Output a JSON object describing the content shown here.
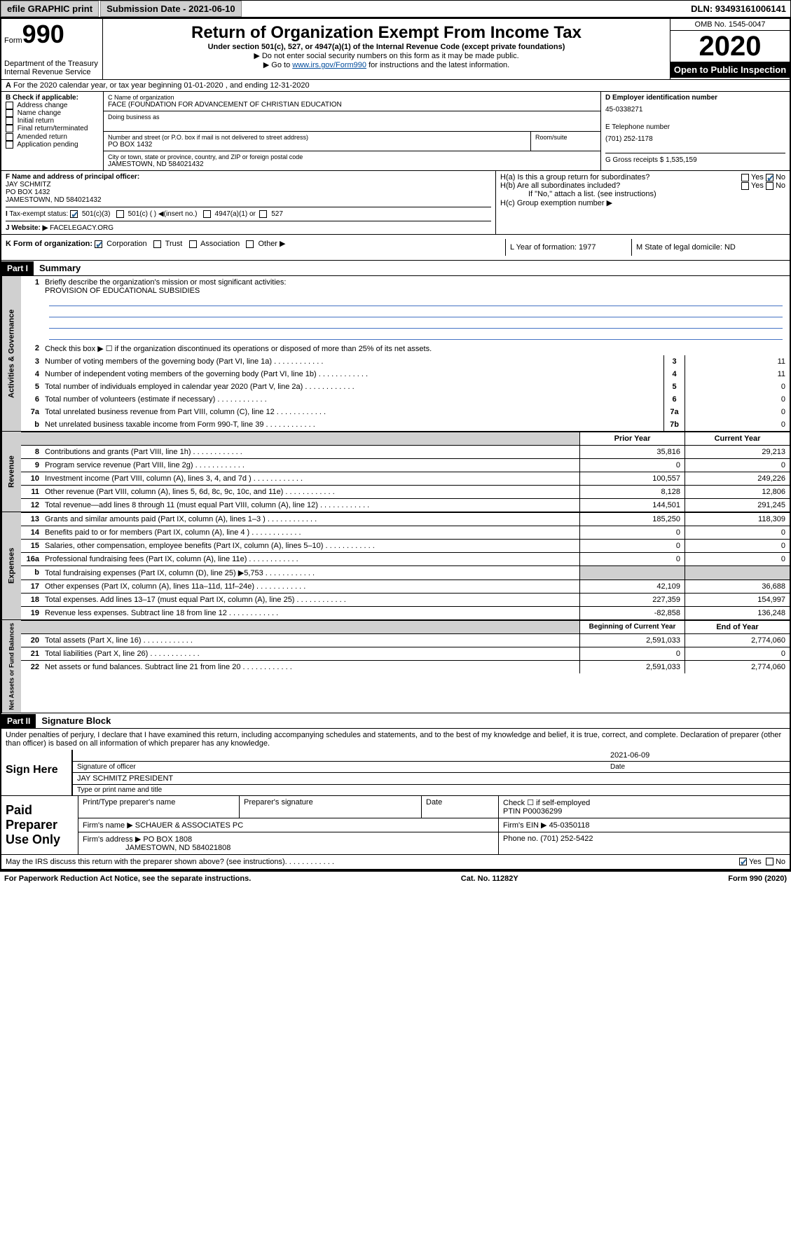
{
  "topbar": {
    "efile": "efile GRAPHIC print",
    "submission_label": "Submission Date - 2021-06-10",
    "dln": "DLN: 93493161006141"
  },
  "header": {
    "form_prefix": "Form",
    "form_number": "990",
    "dept": "Department of the Treasury\nInternal Revenue Service",
    "title": "Return of Organization Exempt From Income Tax",
    "subtitle": "Under section 501(c), 527, or 4947(a)(1) of the Internal Revenue Code (except private foundations)",
    "instr1": "Do not enter social security numbers on this form as it may be made public.",
    "instr2_pre": "Go to ",
    "instr2_link": "www.irs.gov/Form990",
    "instr2_post": " for instructions and the latest information.",
    "omb": "OMB No. 1545-0047",
    "year": "2020",
    "open_public": "Open to Public Inspection"
  },
  "lineA": "For the 2020 calendar year, or tax year beginning 01-01-2020   , and ending 12-31-2020",
  "colB": {
    "label": "B Check if applicable:",
    "items": [
      "Address change",
      "Name change",
      "Initial return",
      "Final return/terminated",
      "Amended return",
      "Application pending"
    ]
  },
  "colC": {
    "name_label": "C Name of organization",
    "name": "FACE (FOUNDATION FOR ADVANCEMENT OF CHRISTIAN EDUCATION",
    "dba_label": "Doing business as",
    "addr_label": "Number and street (or P.O. box if mail is not delivered to street address)",
    "room_label": "Room/suite",
    "addr": "PO BOX 1432",
    "city_label": "City or town, state or province, country, and ZIP or foreign postal code",
    "city": "JAMESTOWN, ND  584021432"
  },
  "colD": {
    "ein_label": "D Employer identification number",
    "ein": "45-0338271",
    "phone_label": "E Telephone number",
    "phone": "(701) 252-1178",
    "gross_label": "G Gross receipts $ 1,535,159"
  },
  "colF": {
    "label": "F  Name and address of principal officer:",
    "name": "JAY SCHMITZ",
    "addr1": "PO BOX 1432",
    "addr2": "JAMESTOWN, ND  584021432"
  },
  "colH": {
    "ha": "H(a)  Is this a group return for subordinates?",
    "hb": "H(b)  Are all subordinates included?",
    "hb_note": "If \"No,\" attach a list. (see instructions)",
    "hc": "H(c)  Group exemption number ▶",
    "yes": "Yes",
    "no": "No"
  },
  "rowI": {
    "label": "Tax-exempt status:",
    "opt1": "501(c)(3)",
    "opt2": "501(c) (  ) ◀(insert no.)",
    "opt3": "4947(a)(1) or",
    "opt4": "527"
  },
  "rowJ": {
    "label": "Website: ▶",
    "val": "FACELEGACY.ORG"
  },
  "rowK": {
    "label": "K Form of organization:",
    "opts": [
      "Corporation",
      "Trust",
      "Association",
      "Other ▶"
    ]
  },
  "colL": {
    "label": "L Year of formation: 1977"
  },
  "colM": {
    "label": "M State of legal domicile: ND"
  },
  "part1": {
    "header": "Part I",
    "title": "Summary",
    "q1": "Briefly describe the organization's mission or most significant activities:",
    "q1_val": "PROVISION OF EDUCATIONAL SUBSIDIES",
    "q2": "Check this box ▶ ☐ if the organization discontinued its operations or disposed of more than 25% of its net assets.",
    "vert1": "Activities & Governance",
    "vert2": "Revenue",
    "vert3": "Expenses",
    "vert4": "Net Assets or Fund Balances",
    "lines_gov": [
      {
        "n": "3",
        "t": "Number of voting members of the governing body (Part VI, line 1a)",
        "b": "3",
        "v": "11"
      },
      {
        "n": "4",
        "t": "Number of independent voting members of the governing body (Part VI, line 1b)",
        "b": "4",
        "v": "11"
      },
      {
        "n": "5",
        "t": "Total number of individuals employed in calendar year 2020 (Part V, line 2a)",
        "b": "5",
        "v": "0"
      },
      {
        "n": "6",
        "t": "Total number of volunteers (estimate if necessary)",
        "b": "6",
        "v": "0"
      },
      {
        "n": "7a",
        "t": "Total unrelated business revenue from Part VIII, column (C), line 12",
        "b": "7a",
        "v": "0"
      },
      {
        "n": "b",
        "t": "Net unrelated business taxable income from Form 990-T, line 39",
        "b": "7b",
        "v": "0"
      }
    ],
    "th_prior": "Prior Year",
    "th_current": "Current Year",
    "lines_rev": [
      {
        "n": "8",
        "t": "Contributions and grants (Part VIII, line 1h)",
        "p": "35,816",
        "c": "29,213"
      },
      {
        "n": "9",
        "t": "Program service revenue (Part VIII, line 2g)",
        "p": "0",
        "c": "0"
      },
      {
        "n": "10",
        "t": "Investment income (Part VIII, column (A), lines 3, 4, and 7d )",
        "p": "100,557",
        "c": "249,226"
      },
      {
        "n": "11",
        "t": "Other revenue (Part VIII, column (A), lines 5, 6d, 8c, 9c, 10c, and 11e)",
        "p": "8,128",
        "c": "12,806"
      },
      {
        "n": "12",
        "t": "Total revenue—add lines 8 through 11 (must equal Part VIII, column (A), line 12)",
        "p": "144,501",
        "c": "291,245"
      }
    ],
    "lines_exp": [
      {
        "n": "13",
        "t": "Grants and similar amounts paid (Part IX, column (A), lines 1–3 )",
        "p": "185,250",
        "c": "118,309"
      },
      {
        "n": "14",
        "t": "Benefits paid to or for members (Part IX, column (A), line 4 )",
        "p": "0",
        "c": "0"
      },
      {
        "n": "15",
        "t": "Salaries, other compensation, employee benefits (Part IX, column (A), lines 5–10)",
        "p": "0",
        "c": "0"
      },
      {
        "n": "16a",
        "t": "Professional fundraising fees (Part IX, column (A), line 11e)",
        "p": "0",
        "c": "0"
      },
      {
        "n": "b",
        "t": "Total fundraising expenses (Part IX, column (D), line 25) ▶5,753",
        "p": "",
        "c": ""
      },
      {
        "n": "17",
        "t": "Other expenses (Part IX, column (A), lines 11a–11d, 11f–24e)",
        "p": "42,109",
        "c": "36,688"
      },
      {
        "n": "18",
        "t": "Total expenses. Add lines 13–17 (must equal Part IX, column (A), line 25)",
        "p": "227,359",
        "c": "154,997"
      },
      {
        "n": "19",
        "t": "Revenue less expenses. Subtract line 18 from line 12",
        "p": "-82,858",
        "c": "136,248"
      }
    ],
    "th_begin": "Beginning of Current Year",
    "th_end": "End of Year",
    "lines_net": [
      {
        "n": "20",
        "t": "Total assets (Part X, line 16)",
        "p": "2,591,033",
        "c": "2,774,060"
      },
      {
        "n": "21",
        "t": "Total liabilities (Part X, line 26)",
        "p": "0",
        "c": "0"
      },
      {
        "n": "22",
        "t": "Net assets or fund balances. Subtract line 21 from line 20",
        "p": "2,591,033",
        "c": "2,774,060"
      }
    ]
  },
  "part2": {
    "header": "Part II",
    "title": "Signature Block",
    "perjury": "Under penalties of perjury, I declare that I have examined this return, including accompanying schedules and statements, and to the best of my knowledge and belief, it is true, correct, and complete. Declaration of preparer (other than officer) is based on all information of which preparer has any knowledge.",
    "sign_here": "Sign Here",
    "sig_officer": "Signature of officer",
    "sig_date": "2021-06-09",
    "date_label": "Date",
    "officer_name": "JAY SCHMITZ  PRESIDENT",
    "type_name": "Type or print name and title",
    "paid_label": "Paid Preparer Use Only",
    "prep_name_label": "Print/Type preparer's name",
    "prep_sig_label": "Preparer's signature",
    "check_self": "Check ☐ if self-employed",
    "ptin_label": "PTIN",
    "ptin": "P00036299",
    "firm_name_label": "Firm's name   ▶",
    "firm_name": "SCHAUER & ASSOCIATES PC",
    "firm_ein_label": "Firm's EIN ▶",
    "firm_ein": "45-0350118",
    "firm_addr_label": "Firm's address ▶",
    "firm_addr1": "PO BOX 1808",
    "firm_addr2": "JAMESTOWN, ND  584021808",
    "firm_phone_label": "Phone no.",
    "firm_phone": "(701) 252-5422",
    "discuss": "May the IRS discuss this return with the preparer shown above? (see instructions)"
  },
  "footer": {
    "paperwork": "For Paperwork Reduction Act Notice, see the separate instructions.",
    "cat": "Cat. No. 11282Y",
    "form": "Form 990 (2020)"
  }
}
